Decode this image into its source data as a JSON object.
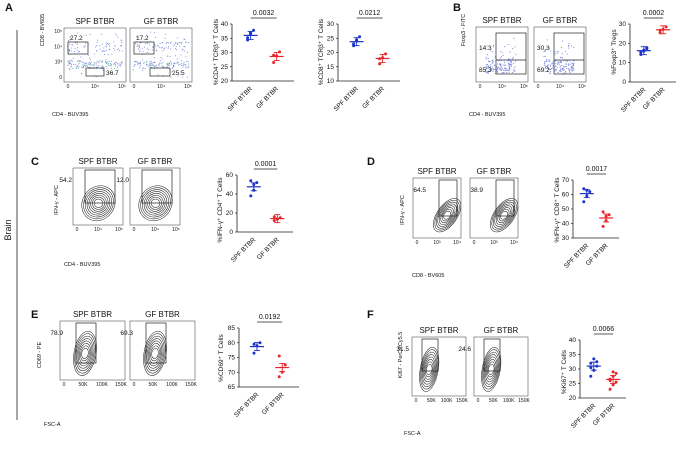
{
  "figure": {
    "side_label": "Brain",
    "panels": [
      {
        "letter": "A",
        "flow": {
          "ylabel": "CD8 - BV605",
          "xlabel": "CD4 - BUV395",
          "xticks": [
            "0",
            "10⁴",
            "10⁵"
          ],
          "yticks": [
            "10⁵",
            "10⁴",
            "10³",
            "0"
          ],
          "plots": [
            {
              "title": "SPF BTBR",
              "gates": [
                "27.2",
                "36.7"
              ]
            },
            {
              "title": "GF BTBR",
              "gates": [
                "17.2",
                "25.5"
              ]
            }
          ]
        },
        "dots": [
          {
            "ylabel": "%CD4⁺ TCRβ⁺ T Cells",
            "yticks": [
              "40",
              "35",
              "30",
              "25",
              "20"
            ],
            "pvalue": "0.0032",
            "groups": [
              "SPF BTBR",
              "GF BTBR"
            ]
          },
          {
            "ylabel": "%CD8⁺ TCRβ⁺ T Cells",
            "yticks": [
              "30",
              "25",
              "20",
              "15",
              "10"
            ],
            "pvalue": "0.0212",
            "groups": [
              "SPF BTBR",
              "GF BTBR"
            ]
          }
        ]
      },
      {
        "letter": "B",
        "flow": {
          "ylabel": "Foxp3 - FITC",
          "xlabel": "CD4 - BUV395",
          "xticks": [
            "0",
            "10⁴",
            "10⁵"
          ],
          "plots": [
            {
              "title": "SPF BTBR",
              "gates": [
                "14.3",
                "85.3"
              ]
            },
            {
              "title": "GF BTBR",
              "gates": [
                "30.3",
                "69.2"
              ]
            }
          ]
        },
        "dots": [
          {
            "ylabel": "%Foxp3⁺ Tregs",
            "yticks": [
              "30",
              "20",
              "10",
              "0"
            ],
            "pvalue": "0.0002",
            "groups": [
              "SPF BTBR",
              "GF BTBR"
            ]
          }
        ]
      },
      {
        "letter": "C",
        "flow": {
          "ylabel": "IFN-γ - APC",
          "xlabel": "CD4 - BUV395",
          "xticks": [
            "0",
            "10⁴",
            "10⁵"
          ],
          "plots": [
            {
              "title": "SPF BTBR",
              "gates": [
                "54.2"
              ]
            },
            {
              "title": "GF BTBR",
              "gates": [
                "12.0"
              ]
            }
          ]
        },
        "dots": [
          {
            "ylabel": "%IFN-γ⁺ CD4⁺ T Cells",
            "yticks": [
              "60",
              "40",
              "20",
              "0"
            ],
            "pvalue": "0.0001",
            "groups": [
              "SPF BTBR",
              "GF BTBR"
            ]
          }
        ]
      },
      {
        "letter": "D",
        "flow": {
          "ylabel": "IFN-γ - APC",
          "xlabel": "CD8 - BV605",
          "xticks": [
            "0",
            "10³",
            "10⁴"
          ],
          "plots": [
            {
              "title": "SPF BTBR",
              "gates": [
                "64.5"
              ]
            },
            {
              "title": "GF BTBR",
              "gates": [
                "38.9"
              ]
            }
          ]
        },
        "dots": [
          {
            "ylabel": "%IFN-γ⁺ CD8⁺ T Cells",
            "yticks": [
              "70",
              "60",
              "50",
              "40",
              "30"
            ],
            "pvalue": "0.0017",
            "groups": [
              "SPF BTBR",
              "GF BTBR"
            ]
          }
        ]
      },
      {
        "letter": "E",
        "flow": {
          "ylabel": "CD69 - PE",
          "xlabel": "FSC-A",
          "xticks": [
            "0",
            "50K",
            "100K",
            "150K"
          ],
          "plots": [
            {
              "title": "SPF BTBR",
              "gates": [
                "78.9"
              ]
            },
            {
              "title": "GF BTBR",
              "gates": [
                "69.3"
              ]
            }
          ]
        },
        "dots": [
          {
            "ylabel": "%CD69⁺ T Cells",
            "yticks": [
              "85",
              "80",
              "75",
              "70",
              "65"
            ],
            "pvalue": "0.0192",
            "groups": [
              "SPF BTBR",
              "GF BTBR"
            ]
          }
        ]
      },
      {
        "letter": "F",
        "flow": {
          "ylabel": "Ki67 - PerCPCy5.5",
          "xlabel": "FSC-A",
          "xticks": [
            "0",
            "50K",
            "100K",
            "150K"
          ],
          "plots": [
            {
              "title": "SPF BTBR",
              "gates": [
                "31.5"
              ]
            },
            {
              "title": "GF BTBR",
              "gates": [
                "24.6"
              ]
            }
          ]
        },
        "dots": [
          {
            "ylabel": "%Ki67⁺ T Cells",
            "yticks": [
              "40",
              "35",
              "30",
              "25",
              "20"
            ],
            "pvalue": "0.0066",
            "groups": [
              "SPF BTBR",
              "GF BTBR"
            ]
          }
        ]
      }
    ]
  },
  "colors": {
    "spf": "#1c33c9",
    "gf": "#e8262a",
    "text": "#111111"
  },
  "chart_data": [
    {
      "type": "scatter",
      "panel": "A",
      "ylabel": "%CD4⁺ TCRβ⁺ T Cells",
      "ylim": [
        20,
        40
      ],
      "categories": [
        "SPF BTBR",
        "GF BTBR"
      ],
      "series": [
        {
          "name": "SPF BTBR",
          "values": [
            35.2,
            36.5,
            37.8,
            34.4,
            36.9
          ],
          "mean": 36.0
        },
        {
          "name": "GF BTBR",
          "values": [
            26.5,
            28.8,
            30.2,
            29.0
          ],
          "mean": 28.6
        }
      ],
      "pvalue": "0.0032"
    },
    {
      "type": "scatter",
      "panel": "A",
      "ylabel": "%CD8⁺ TCRβ⁺ T Cells",
      "ylim": [
        10,
        30
      ],
      "categories": [
        "SPF BTBR",
        "GF BTBR"
      ],
      "series": [
        {
          "name": "SPF BTBR",
          "values": [
            23.0,
            24.5,
            25.5,
            22.4,
            24.0
          ],
          "mean": 23.8
        },
        {
          "name": "GF BTBR",
          "values": [
            16.0,
            18.2,
            19.5,
            17.8
          ],
          "mean": 17.9
        }
      ],
      "pvalue": "0.0212"
    },
    {
      "type": "scatter",
      "panel": "B",
      "ylabel": "%Foxp3⁺ Tregs",
      "ylim": [
        0,
        30
      ],
      "categories": [
        "SPF BTBR",
        "GF BTBR"
      ],
      "series": [
        {
          "name": "SPF BTBR",
          "values": [
            14.2,
            16.5,
            17.2,
            15.4,
            16.0,
            17.8
          ],
          "mean": 16.2
        },
        {
          "name": "GF BTBR",
          "values": [
            25.5,
            27.2,
            28.5,
            26.8
          ],
          "mean": 27.0
        }
      ],
      "pvalue": "0.0002"
    },
    {
      "type": "scatter",
      "panel": "C",
      "ylabel": "%IFN-γ⁺ CD4⁺ T Cells",
      "ylim": [
        0,
        60
      ],
      "categories": [
        "SPF BTBR",
        "GF BTBR"
      ],
      "series": [
        {
          "name": "SPF BTBR",
          "values": [
            38,
            44,
            52,
            54,
            50
          ],
          "mean": 47.6
        },
        {
          "name": "GF BTBR",
          "values": [
            12,
            13.5,
            15,
            16,
            14
          ],
          "mean": 14.1
        }
      ],
      "pvalue": "0.0001"
    },
    {
      "type": "scatter",
      "panel": "D",
      "ylabel": "%IFN-γ⁺ CD8⁺ T Cells",
      "ylim": [
        30,
        70
      ],
      "categories": [
        "SPF BTBR",
        "GF BTBR"
      ],
      "series": [
        {
          "name": "SPF BTBR",
          "values": [
            55,
            59,
            62,
            64,
            63
          ],
          "mean": 60.6
        },
        {
          "name": "GF BTBR",
          "values": [
            38,
            42,
            46,
            48,
            45
          ],
          "mean": 43.8
        }
      ],
      "pvalue": "0.0017"
    },
    {
      "type": "scatter",
      "panel": "E",
      "ylabel": "%CD69⁺ T Cells",
      "ylim": [
        65,
        85
      ],
      "categories": [
        "SPF BTBR",
        "GF BTBR"
      ],
      "series": [
        {
          "name": "SPF BTBR",
          "values": [
            76.5,
            79,
            80,
            79.5
          ],
          "mean": 78.7
        },
        {
          "name": "GF BTBR",
          "values": [
            68.5,
            70,
            72.5,
            75.5
          ],
          "mean": 71.6
        }
      ],
      "pvalue": "0.0192"
    },
    {
      "type": "scatter",
      "panel": "F",
      "ylabel": "%Ki67⁺ T Cells",
      "ylim": [
        20,
        40
      ],
      "categories": [
        "SPF BTBR",
        "GF BTBR"
      ],
      "series": [
        {
          "name": "SPF BTBR",
          "values": [
            27.5,
            29.5,
            31,
            32,
            33.5,
            32.5,
            30.5
          ],
          "mean": 31.0
        },
        {
          "name": "GF BTBR",
          "values": [
            23,
            24.5,
            25.5,
            26.5,
            27.5,
            28.5,
            26,
            29
          ],
          "mean": 26.4
        }
      ],
      "pvalue": "0.0066"
    }
  ]
}
